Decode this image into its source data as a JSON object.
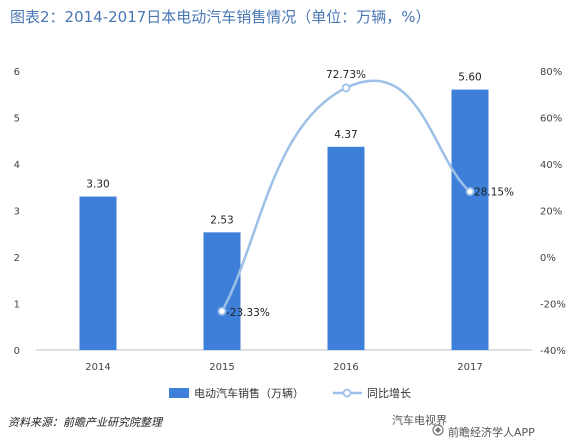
{
  "header": {
    "title": "图表2：2014-2017日本电动汽车销售情况（单位：万辆，%）"
  },
  "footer": {
    "source": "资料来源：前瞻产业研究院整理"
  },
  "watermark": {
    "line1": "汽车电视界",
    "line2": "前瞻经济学人APP"
  },
  "colors": {
    "bar": "#3d7fd9",
    "line": "#9cc0e8",
    "title": "#4a77b4"
  },
  "chart_data": {
    "type": "bar",
    "title": "图表2：2014-2017日本电动汽车销售情况（单位：万辆，%）",
    "categories": [
      "2014",
      "2015",
      "2016",
      "2017"
    ],
    "series": [
      {
        "name": "电动汽车销售（万辆）",
        "type": "bar",
        "axis": "left",
        "values": [
          3.3,
          2.53,
          4.37,
          5.6
        ],
        "labels": [
          "3.30",
          "2.53",
          "4.37",
          "5.60"
        ]
      },
      {
        "name": "同比增长",
        "type": "line",
        "axis": "right",
        "smooth": true,
        "x": [
          "2015",
          "2016",
          "2017"
        ],
        "values": [
          -23.33,
          72.73,
          28.15
        ],
        "labels": [
          "-23.33%",
          "72.73%",
          "28.15%"
        ]
      }
    ],
    "ylim_left": [
      0,
      6
    ],
    "yticks_left": [
      "0",
      "1",
      "2",
      "3",
      "4",
      "5",
      "6"
    ],
    "ylim_right": [
      -40,
      80
    ],
    "yticks_right": [
      "-40%",
      "-20%",
      "0%",
      "20%",
      "40%",
      "60%",
      "80%"
    ],
    "legend": "bottom",
    "grid": false
  }
}
